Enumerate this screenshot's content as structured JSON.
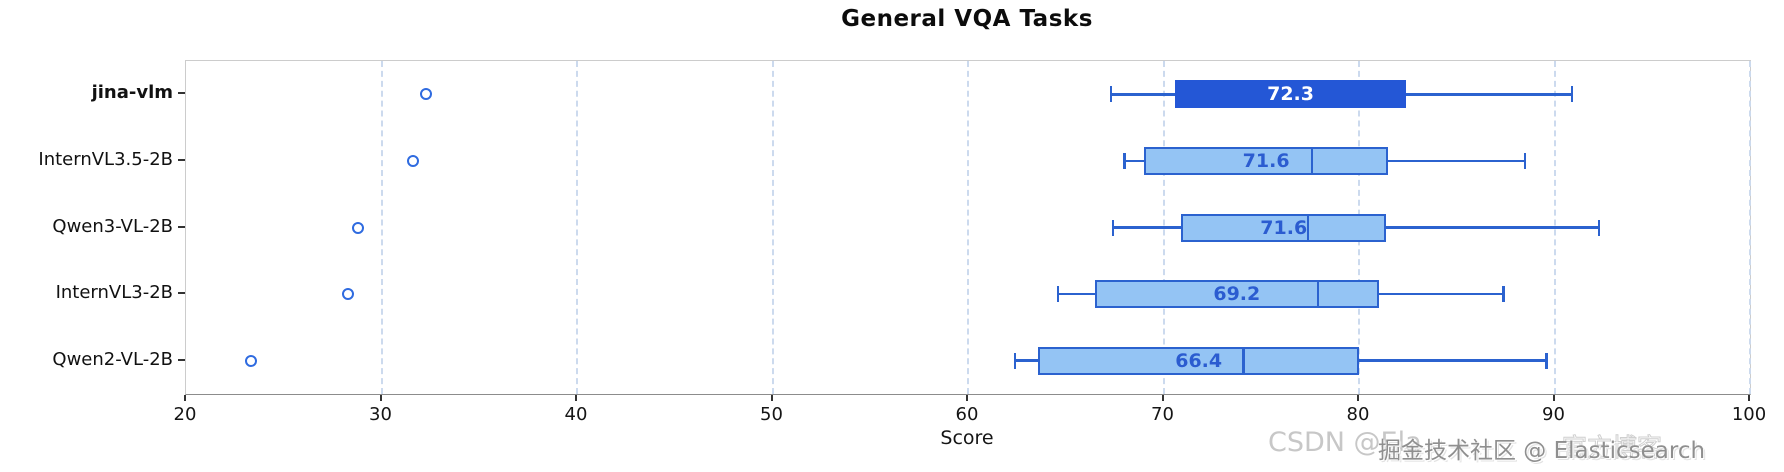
{
  "title": "General VQA Tasks",
  "xlabel": "Score",
  "watermarks": [
    {
      "id": "csdn",
      "text": "CSDN @Ela"
    },
    {
      "id": "juejin",
      "text": "掘金技术社区 @ Elasticsearch"
    },
    {
      "id": "ghost",
      "text": "官方博客"
    }
  ],
  "colors": {
    "highlight_box_fill": "#2457d6",
    "box_fill": "#94c4f4",
    "box_border": "#2b62cf",
    "whisker": "#2b62cf",
    "outlier_ring": "#2f6be0",
    "mean_text_on_highlight": "#ffffff",
    "mean_text": "#2b5cd0",
    "grid": "#ccdaee",
    "axis_text": "#151515"
  },
  "chart_data": {
    "type": "boxplot",
    "orientation": "horizontal",
    "title": "General VQA Tasks",
    "xlabel": "Score",
    "ylabel": "",
    "xlim": [
      20,
      100
    ],
    "xticks": [
      20,
      30,
      40,
      50,
      60,
      70,
      80,
      90,
      100
    ],
    "grid": "vertical-dashed",
    "legend": "none",
    "categories": [
      "jina-vlm",
      "InternVL3.5-2B",
      "Qwen3-VL-2B",
      "InternVL3-2B",
      "Qwen2-VL-2B"
    ],
    "series": [
      {
        "name": "jina-vlm",
        "highlight": true,
        "whisker_low": 67.3,
        "q1": 70.6,
        "median": null,
        "q3": 82.4,
        "whisker_high": 90.9,
        "mean_label": "72.3",
        "outliers": [
          32.3
        ]
      },
      {
        "name": "InternVL3.5-2B",
        "highlight": false,
        "whisker_low": 68.0,
        "q1": 69.0,
        "median": 77.6,
        "q3": 81.5,
        "whisker_high": 88.5,
        "mean_label": "71.6",
        "outliers": [
          31.6
        ]
      },
      {
        "name": "Qwen3-VL-2B",
        "highlight": false,
        "whisker_low": 67.4,
        "q1": 70.9,
        "median": 77.4,
        "q3": 81.4,
        "whisker_high": 92.3,
        "mean_label": "71.6",
        "outliers": [
          28.8
        ]
      },
      {
        "name": "InternVL3-2B",
        "highlight": false,
        "whisker_low": 64.6,
        "q1": 66.5,
        "median": 77.9,
        "q3": 81.0,
        "whisker_high": 87.4,
        "mean_label": "69.2",
        "outliers": [
          28.3
        ]
      },
      {
        "name": "Qwen2-VL-2B",
        "highlight": false,
        "whisker_low": 62.4,
        "q1": 63.6,
        "median": 74.1,
        "q3": 80.0,
        "whisker_high": 89.6,
        "mean_label": "66.4",
        "outliers": [
          23.3
        ]
      }
    ]
  }
}
